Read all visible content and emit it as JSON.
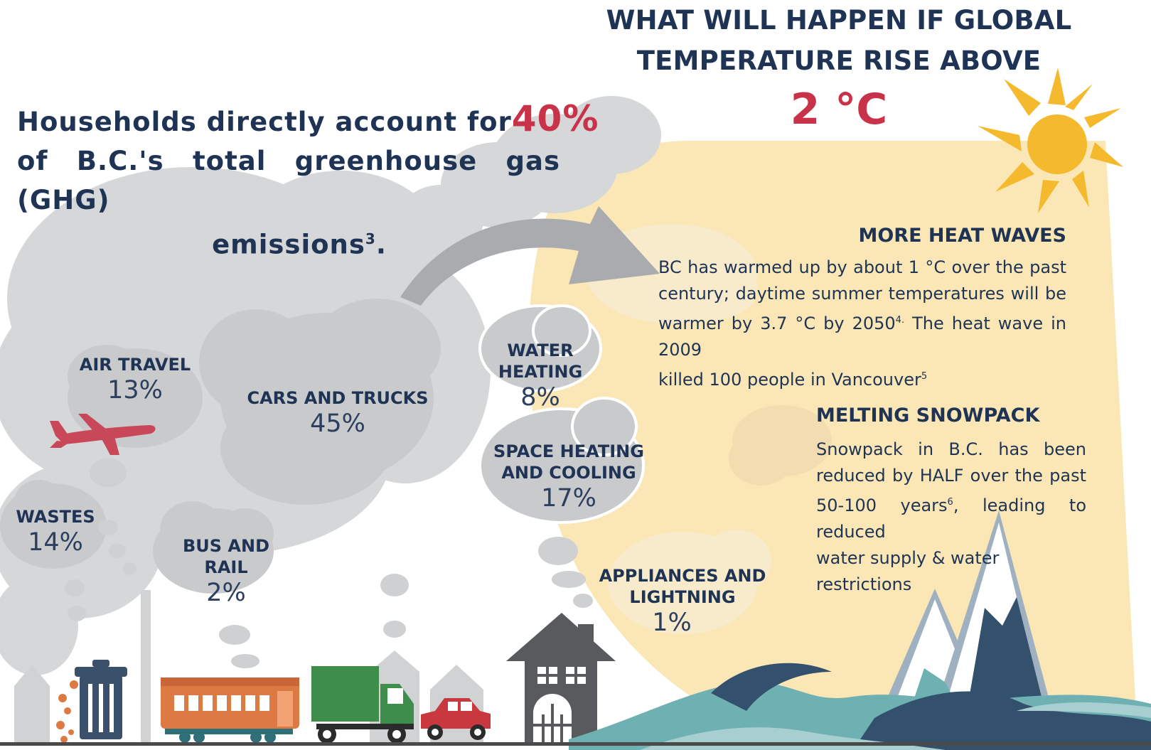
{
  "title": {
    "line1": "WHAT WILL HAPPEN IF GLOBAL",
    "line2": "TEMPERATURE RISE ABOVE",
    "value": "2 °C"
  },
  "households": {
    "text_a": "Households directly account for ",
    "percent": "40%",
    "text_b": "of B.C.'s total greenhouse gas (GHG)",
    "text_c": "emissions",
    "note": "3",
    "suffix": "."
  },
  "categories": [
    {
      "label": "AIR TRAVEL",
      "value": "13%"
    },
    {
      "label": "CARS AND TRUCKS",
      "value": "45%"
    },
    {
      "label": "WATER HEATING",
      "value": "8%"
    },
    {
      "label_1": "SPACE HEATING",
      "label_2": "AND COOLING",
      "value": "17%"
    },
    {
      "label": "WASTES",
      "value": "14%"
    },
    {
      "label": "BUS AND RAIL",
      "value": "2%"
    },
    {
      "label_1": "APPLIANCES AND",
      "label_2": "LIGHTNING",
      "value": "1%"
    }
  ],
  "heat_waves": {
    "title": "MORE HEAT WAVES",
    "line1": "BC has warmed up by about 1 °C over the past",
    "line2": "century; daytime summer temperatures will be",
    "line3a": "warmer by 3.7 °C by 2050",
    "line3_note": "4.",
    "line3b": " The heat wave in 2009",
    "line4": "killed 100 people in Vancouver",
    "line4_note": "5"
  },
  "snowpack": {
    "title": "MELTING SNOWPACK",
    "line1": "Snowpack in B.C. has been",
    "line2": "reduced by HALF over the past",
    "line3a": "50-100 years",
    "line3_note": "6",
    "line3b": ", leading to reduced",
    "line4": "water supply & water restrictions"
  },
  "colors": {
    "navy": "#1f3354",
    "accent_red": "#c8334a",
    "sun": "#f5b92e",
    "warm_bg": "#fbe7b5",
    "smoke": "#d6d7d9",
    "cloud": "#c9cacc",
    "water_teal": "#6fb0b3",
    "water_dark": "#33506c",
    "house": "#585a5d",
    "tram": "#dd7a43",
    "truck": "#3e8d4a",
    "car": "#c9383f"
  },
  "icons": [
    "sun-icon",
    "airplane-icon",
    "trash-can-icon",
    "tram-icon",
    "truck-icon",
    "car-icon",
    "house-icon",
    "mountain-icon",
    "wave-icon",
    "arrow-icon"
  ]
}
